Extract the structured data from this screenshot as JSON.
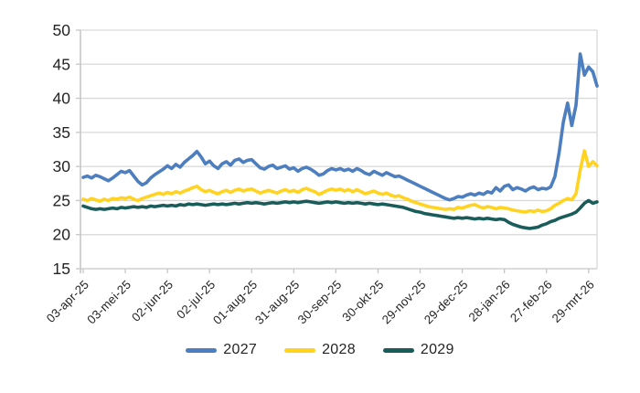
{
  "chart_data": {
    "type": "line",
    "title": "",
    "xlabel": "",
    "ylabel": "",
    "ylim": [
      15,
      50
    ],
    "y_ticks": [
      15,
      20,
      25,
      30,
      35,
      40,
      45,
      50
    ],
    "x_tick_labels": [
      "03-apr-25",
      "03-mei-25",
      "02-jun-25",
      "02-jul-25",
      "01-aug-25",
      "31-aug-25",
      "30-sep-25",
      "30-okt-25",
      "29-nov-25",
      "29-dec-25",
      "28-jan-26",
      "27-feb-26",
      "29-mrt-26"
    ],
    "x_tick_days": [
      0,
      30,
      60,
      90,
      120,
      150,
      180,
      210,
      240,
      270,
      300,
      330,
      360
    ],
    "x_range_days": [
      0,
      366
    ],
    "sample_step_days": 3,
    "grid_on": true,
    "legend_position": "bottom",
    "colors": {
      "grid": "#d9d9d9",
      "axis": "#c6c6c6",
      "text": "#242424",
      "background": "#ffffff"
    },
    "series": [
      {
        "name": "2027",
        "color": "#4d7ebf",
        "values": [
          28.4,
          28.6,
          28.3,
          28.7,
          28.5,
          28.2,
          27.9,
          28.3,
          28.8,
          29.3,
          29.1,
          29.4,
          28.6,
          27.8,
          27.3,
          27.6,
          28.3,
          28.8,
          29.2,
          29.6,
          30.1,
          29.7,
          30.3,
          29.9,
          30.6,
          31.1,
          31.6,
          32.2,
          31.4,
          30.4,
          30.8,
          30.1,
          29.7,
          30.4,
          30.7,
          30.2,
          30.9,
          31.1,
          30.6,
          30.9,
          31.0,
          30.4,
          29.8,
          29.6,
          30.0,
          30.2,
          29.7,
          29.9,
          30.1,
          29.6,
          29.8,
          29.3,
          29.7,
          29.9,
          29.6,
          29.2,
          28.7,
          28.9,
          29.4,
          29.7,
          29.5,
          29.7,
          29.4,
          29.6,
          29.3,
          29.7,
          29.4,
          29.0,
          28.8,
          29.3,
          29.0,
          28.7,
          29.1,
          28.8,
          28.5,
          28.6,
          28.3,
          28.0,
          27.7,
          27.4,
          27.1,
          26.8,
          26.5,
          26.2,
          25.9,
          25.6,
          25.3,
          25.1,
          25.3,
          25.6,
          25.5,
          25.8,
          26.0,
          25.8,
          26.1,
          25.9,
          26.3,
          26.1,
          26.9,
          26.4,
          27.1,
          27.3,
          26.6,
          26.9,
          26.7,
          26.4,
          26.8,
          27.0,
          26.6,
          26.8,
          26.7,
          27.0,
          28.5,
          32.0,
          36.5,
          39.3,
          36.0,
          39.0,
          46.5,
          43.4,
          44.6,
          43.9,
          41.8
        ]
      },
      {
        "name": "2028",
        "color": "#ffd320",
        "values": [
          25.2,
          25.0,
          25.3,
          25.1,
          24.9,
          25.2,
          25.0,
          25.3,
          25.2,
          25.4,
          25.3,
          25.5,
          25.2,
          25.0,
          25.3,
          25.5,
          25.7,
          25.9,
          26.1,
          25.9,
          26.2,
          26.0,
          26.3,
          26.1,
          26.4,
          26.6,
          26.9,
          27.1,
          26.6,
          26.3,
          26.5,
          26.2,
          26.0,
          26.3,
          26.5,
          26.2,
          26.5,
          26.7,
          26.4,
          26.6,
          26.7,
          26.4,
          26.1,
          26.3,
          26.5,
          26.3,
          26.1,
          26.4,
          26.6,
          26.3,
          26.5,
          26.2,
          26.6,
          26.8,
          26.5,
          26.3,
          25.9,
          26.2,
          26.5,
          26.7,
          26.5,
          26.7,
          26.4,
          26.6,
          26.3,
          26.6,
          26.3,
          26.0,
          26.2,
          26.4,
          26.1,
          25.9,
          26.1,
          25.8,
          25.6,
          25.7,
          25.4,
          25.2,
          24.9,
          24.7,
          24.5,
          24.3,
          24.1,
          24.0,
          23.9,
          23.8,
          23.7,
          23.8,
          23.7,
          24.0,
          23.9,
          24.1,
          24.3,
          24.4,
          24.1,
          23.9,
          24.1,
          24.0,
          23.8,
          24.0,
          23.9,
          23.8,
          23.6,
          23.5,
          23.4,
          23.3,
          23.5,
          23.4,
          23.6,
          23.4,
          23.5,
          23.8,
          24.3,
          24.6,
          25.0,
          25.3,
          25.1,
          26.0,
          29.5,
          32.3,
          30.0,
          30.7,
          30.1
        ]
      },
      {
        "name": "2029",
        "color": "#1a5c5a",
        "values": [
          24.2,
          24.0,
          23.8,
          23.7,
          23.8,
          23.7,
          23.8,
          23.9,
          23.8,
          24.0,
          23.9,
          24.0,
          24.1,
          24.0,
          24.1,
          24.0,
          24.2,
          24.1,
          24.2,
          24.3,
          24.2,
          24.3,
          24.2,
          24.4,
          24.3,
          24.5,
          24.4,
          24.5,
          24.4,
          24.3,
          24.4,
          24.5,
          24.4,
          24.5,
          24.4,
          24.5,
          24.6,
          24.5,
          24.6,
          24.7,
          24.6,
          24.7,
          24.6,
          24.5,
          24.6,
          24.7,
          24.6,
          24.7,
          24.8,
          24.7,
          24.8,
          24.7,
          24.8,
          24.9,
          24.8,
          24.7,
          24.6,
          24.7,
          24.8,
          24.7,
          24.8,
          24.7,
          24.6,
          24.7,
          24.6,
          24.7,
          24.6,
          24.5,
          24.6,
          24.5,
          24.4,
          24.5,
          24.4,
          24.3,
          24.2,
          24.1,
          24.0,
          23.8,
          23.6,
          23.4,
          23.3,
          23.1,
          23.0,
          22.9,
          22.8,
          22.7,
          22.6,
          22.5,
          22.4,
          22.5,
          22.4,
          22.5,
          22.4,
          22.3,
          22.4,
          22.3,
          22.4,
          22.3,
          22.2,
          22.3,
          22.2,
          21.8,
          21.5,
          21.3,
          21.1,
          21.0,
          20.9,
          21.0,
          21.1,
          21.4,
          21.6,
          21.9,
          22.1,
          22.4,
          22.6,
          22.8,
          23.0,
          23.3,
          23.9,
          24.6,
          25.0,
          24.6,
          24.8
        ]
      }
    ]
  }
}
